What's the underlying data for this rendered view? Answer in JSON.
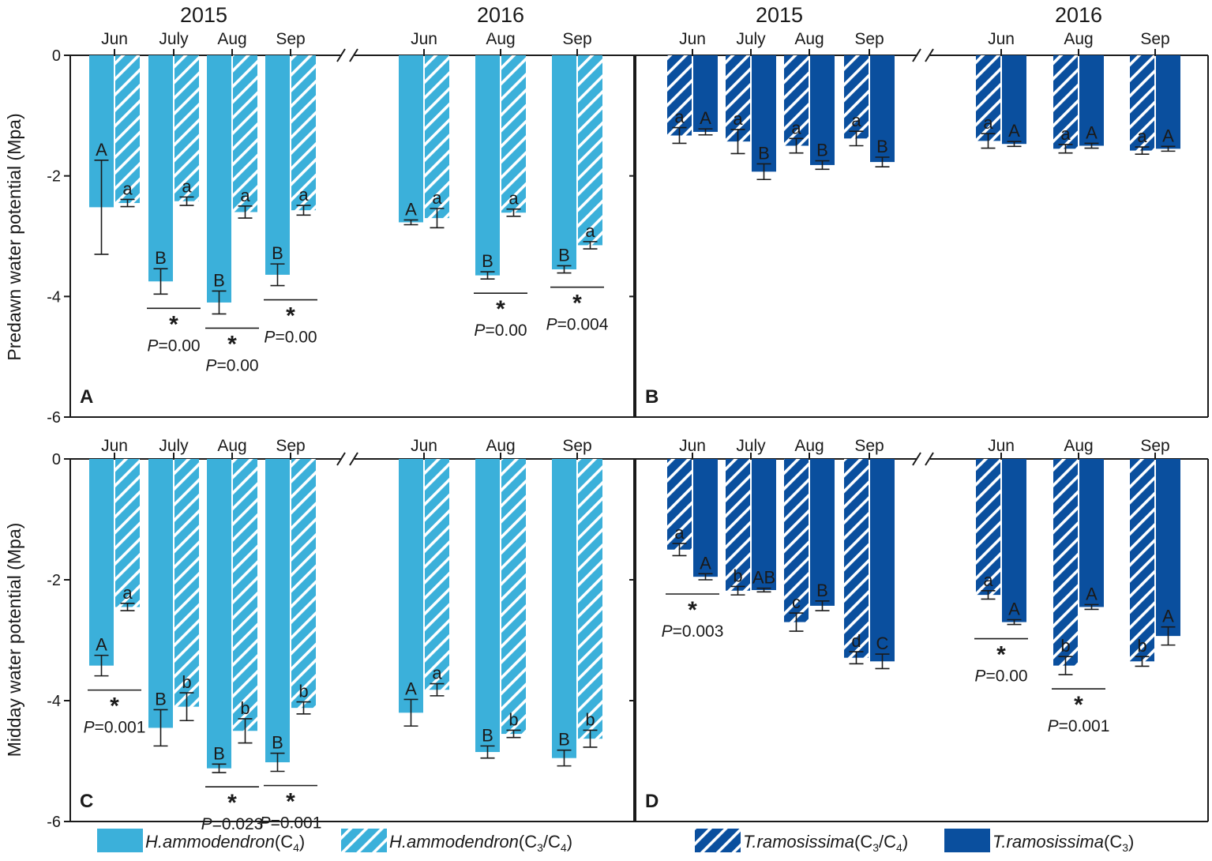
{
  "colors": {
    "ham": "#3BB0DA",
    "tra": "#0A4F9E",
    "axis": "#1a1a1a",
    "hatch": "#ffffff"
  },
  "legend": {
    "ham_c4": {
      "species": "H.ammodendron",
      "pre": "(C",
      "sub": "4",
      "post": ")"
    },
    "ham_c3c4": {
      "species": "H.ammodendron",
      "pre": "(C",
      "sub": "3",
      "mid": "/C",
      "sub2": "4",
      "post": ")"
    },
    "tra_c3c4": {
      "species": "T.ramosissima",
      "pre": "(C",
      "sub": "3",
      "mid": "/C",
      "sub2": "4",
      "post": ")"
    },
    "tra_c3": {
      "species": "T.ramosissima",
      "pre": "(C",
      "sub": "3",
      "post": ")"
    }
  },
  "chart_data": [
    {
      "panel": "A",
      "type": "bar",
      "species": "H.ammodendron",
      "ylabel": "Predawn water potential (Mpa)",
      "ylim": [
        -6,
        0
      ],
      "yticks": [
        0,
        -2,
        -4,
        -6
      ],
      "years": [
        "2015",
        "2016"
      ],
      "months": [
        "Jun",
        "July",
        "Aug",
        "Sep",
        "Jun",
        "Aug",
        "Sep"
      ],
      "series": [
        {
          "name": "H.ammodendron (C4)",
          "hatched": false,
          "values": [
            -2.52,
            -3.75,
            -4.1,
            -3.64,
            -2.77,
            -3.65,
            -3.55
          ],
          "err": [
            0.78,
            0.21,
            0.19,
            0.18,
            0.04,
            0.06,
            0.06
          ],
          "letters": [
            "A",
            "B",
            "B",
            "B",
            "A",
            "B",
            "B"
          ]
        },
        {
          "name": "H.ammodendron (C3/C4)",
          "hatched": true,
          "values": [
            -2.45,
            -2.42,
            -2.6,
            -2.57,
            -2.7,
            -2.61,
            -3.15
          ],
          "err": [
            0.06,
            0.07,
            0.1,
            0.08,
            0.16,
            0.06,
            0.06
          ],
          "letters": [
            "a",
            "a",
            "a",
            "a",
            "a",
            "a",
            "a"
          ]
        }
      ],
      "significance": [
        {
          "month_index": 1,
          "label": "P=0.00"
        },
        {
          "month_index": 2,
          "label": "P=0.00"
        },
        {
          "month_index": 3,
          "label": "P=0.00"
        },
        {
          "month_index": 5,
          "label": "P=0.00"
        },
        {
          "month_index": 6,
          "label": "P=0.004"
        }
      ]
    },
    {
      "panel": "B",
      "type": "bar",
      "species": "T.ramosissima",
      "ylabel": "",
      "ylim": [
        -6,
        0
      ],
      "yticks": [
        0,
        -2,
        -4,
        -6
      ],
      "years": [
        "2015",
        "2016"
      ],
      "months": [
        "Jun",
        "July",
        "Aug",
        "Sep",
        "Jun",
        "Aug",
        "Sep"
      ],
      "series": [
        {
          "name": "T.ramosissima (C3/C4)",
          "hatched": true,
          "values": [
            -1.33,
            -1.43,
            -1.5,
            -1.38,
            -1.42,
            -1.55,
            -1.58
          ],
          "err": [
            0.13,
            0.2,
            0.12,
            0.12,
            0.12,
            0.07,
            0.06
          ],
          "letters": [
            "a",
            "a",
            "a",
            "a",
            "a",
            "a",
            "a"
          ]
        },
        {
          "name": "T.ramosissima (C3)",
          "hatched": false,
          "values": [
            -1.27,
            -1.93,
            -1.82,
            -1.77,
            -1.47,
            -1.5,
            -1.55
          ],
          "err": [
            0.05,
            0.13,
            0.07,
            0.08,
            0.04,
            0.04,
            0.04
          ],
          "letters": [
            "A",
            "B",
            "B",
            "B",
            "A",
            "A",
            "A"
          ]
        }
      ],
      "significance": []
    },
    {
      "panel": "C",
      "type": "bar",
      "species": "H.ammodendron",
      "ylabel": "Midday water potential (Mpa)",
      "ylim": [
        -6,
        0
      ],
      "yticks": [
        0,
        -2,
        -4,
        -6
      ],
      "years": [
        "2015",
        "2016"
      ],
      "months": [
        "Jun",
        "July",
        "Aug",
        "Sep",
        "Jun",
        "Aug",
        "Sep"
      ],
      "series": [
        {
          "name": "H.ammodendron (C4)",
          "hatched": false,
          "values": [
            -3.42,
            -4.45,
            -5.12,
            -5.02,
            -4.2,
            -4.85,
            -4.95
          ],
          "err": [
            0.17,
            0.3,
            0.07,
            0.15,
            0.22,
            0.1,
            0.13
          ],
          "letters": [
            "A",
            "B",
            "B",
            "B",
            "A",
            "B",
            "B"
          ]
        },
        {
          "name": "H.ammodendron (C3/C4)",
          "hatched": true,
          "values": [
            -2.45,
            -4.1,
            -4.5,
            -4.12,
            -3.82,
            -4.55,
            -4.63
          ],
          "err": [
            0.06,
            0.23,
            0.2,
            0.1,
            0.1,
            0.06,
            0.14
          ],
          "letters": [
            "a",
            "b",
            "b",
            "b",
            "a",
            "b",
            "b"
          ]
        }
      ],
      "significance": [
        {
          "month_index": 0,
          "label": "P=0.001"
        },
        {
          "month_index": 2,
          "label": "P=0.023"
        },
        {
          "month_index": 3,
          "label": "P=0.001"
        }
      ]
    },
    {
      "panel": "D",
      "type": "bar",
      "species": "T.ramosissima",
      "ylabel": "",
      "ylim": [
        -6,
        0
      ],
      "yticks": [
        0,
        -2,
        -4,
        -6
      ],
      "years": [
        "2015",
        "2016"
      ],
      "months": [
        "Jun",
        "July",
        "Aug",
        "Sep",
        "Jun",
        "Aug",
        "Sep"
      ],
      "series": [
        {
          "name": "T.ramosissima (C3/C4)",
          "hatched": true,
          "values": [
            -1.5,
            -2.18,
            -2.7,
            -3.29,
            -2.25,
            -3.42,
            -3.35
          ],
          "err": [
            0.1,
            0.07,
            0.15,
            0.1,
            0.07,
            0.15,
            0.08
          ],
          "letters": [
            "a",
            "b",
            "c",
            "d",
            "a",
            "b",
            "b"
          ]
        },
        {
          "name": "T.ramosissima (C3)",
          "hatched": false,
          "values": [
            -1.95,
            -2.17,
            -2.43,
            -3.35,
            -2.7,
            -2.45,
            -2.93
          ],
          "err": [
            0.05,
            0.03,
            0.08,
            0.12,
            0.04,
            0.04,
            0.15
          ],
          "letters": [
            "A",
            "AB",
            "B",
            "C",
            "A",
            "A",
            "A"
          ]
        }
      ],
      "significance": [
        {
          "month_index": 0,
          "label": "P=0.003"
        },
        {
          "month_index": 4,
          "label": "P=0.00"
        },
        {
          "month_index": 5,
          "label": "P=0.001"
        }
      ]
    }
  ]
}
